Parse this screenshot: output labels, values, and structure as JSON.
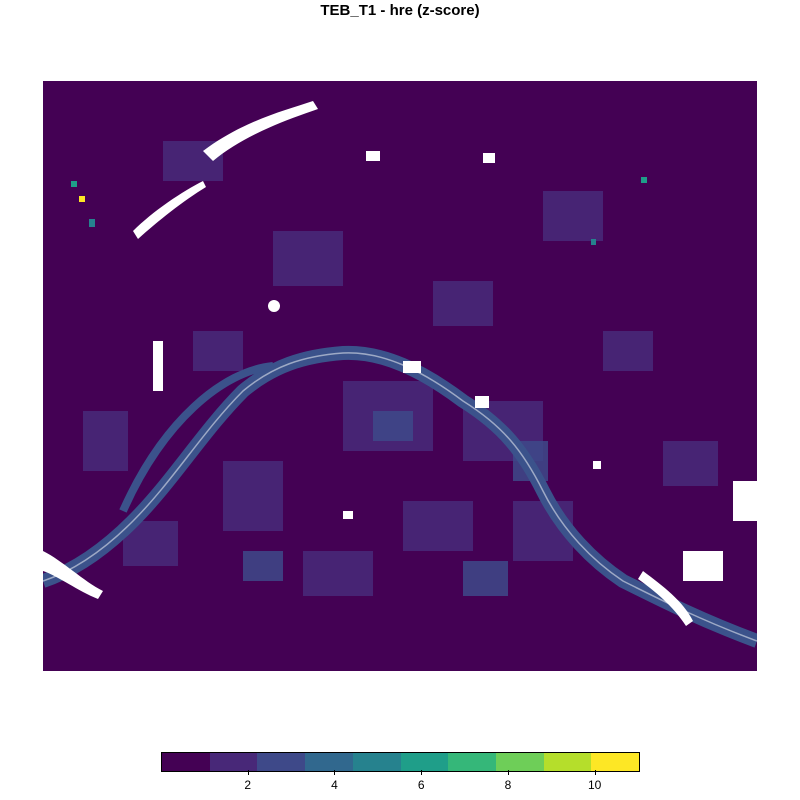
{
  "title": "TEB_T1 - hre  (z-score)",
  "map": {
    "fill_base": "#440154",
    "river_color": "#3b528b",
    "gap_color": "#ffffff"
  },
  "legend": {
    "colors": [
      "#440154",
      "#482878",
      "#3e4989",
      "#31688e",
      "#26828e",
      "#1f9e89",
      "#35b779",
      "#6ece58",
      "#b5de2b",
      "#fde725"
    ],
    "breaks": [
      0,
      1,
      2,
      3,
      4,
      5,
      6,
      7,
      8,
      9,
      10,
      11
    ],
    "tick_labels": [
      "2",
      "4",
      "6",
      "8",
      "10"
    ]
  }
}
